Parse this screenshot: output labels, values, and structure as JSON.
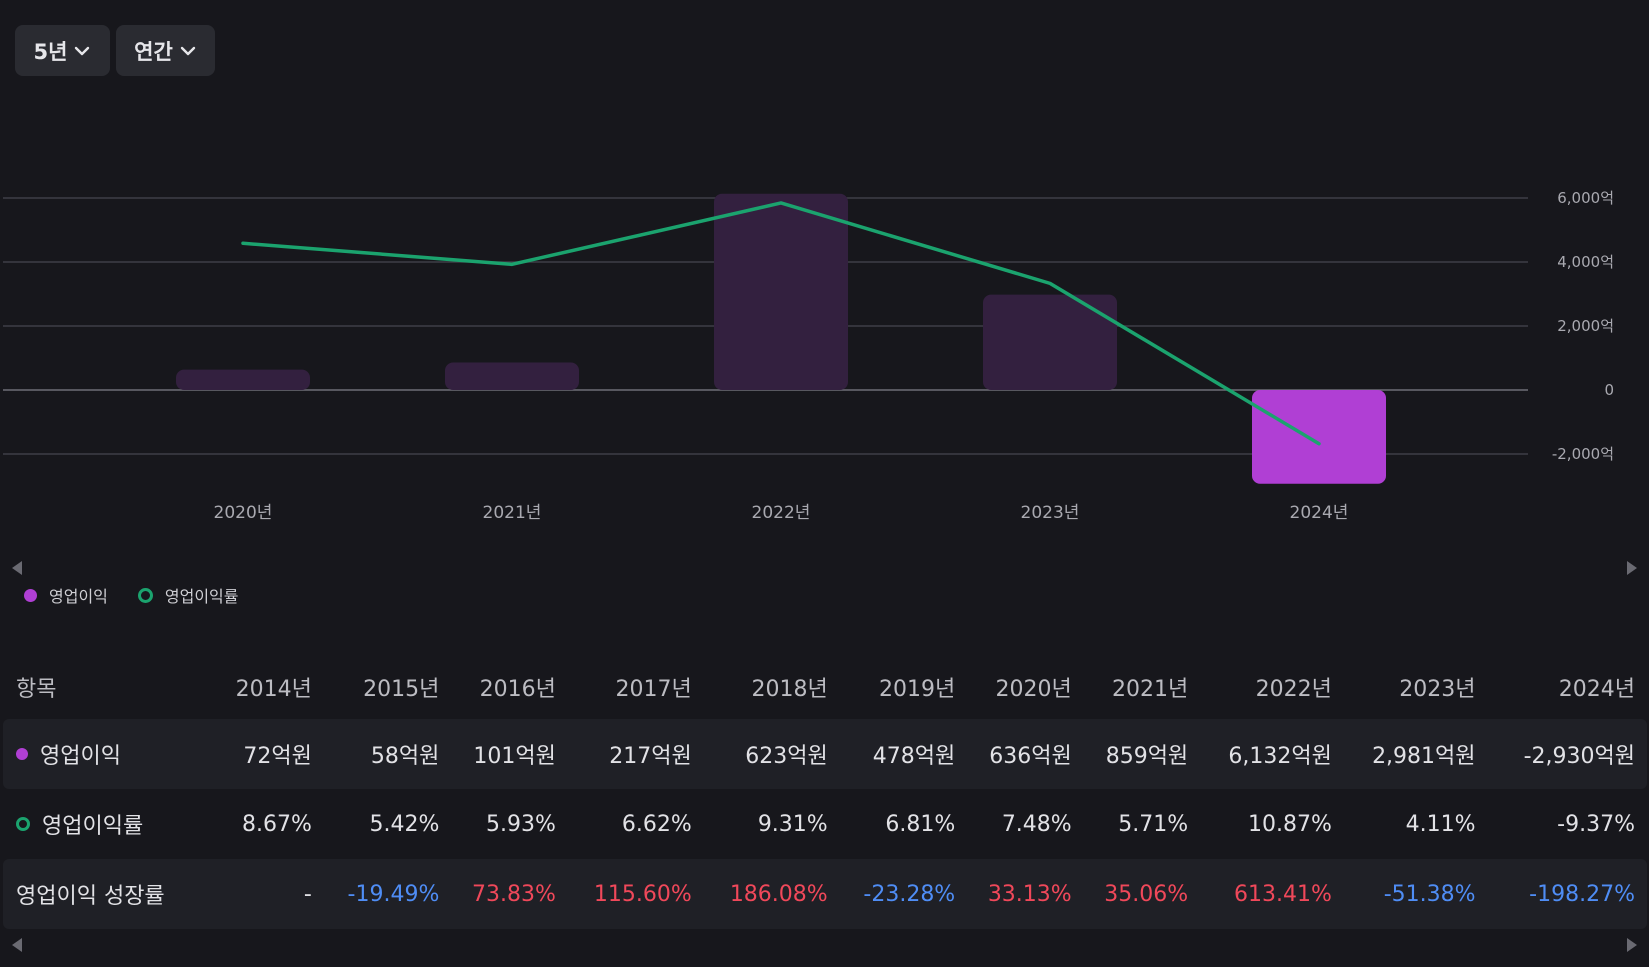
{
  "controls": {
    "period": "5년",
    "frequency": "연간"
  },
  "colors": {
    "bar_default": "#33203f",
    "bar_highlight": "#b03fd4",
    "line": "#1ba36e",
    "negative": "#4f8df5",
    "positive": "#f0485a"
  },
  "chart_data": {
    "type": "bar",
    "categories": [
      "2020년",
      "2021년",
      "2022년",
      "2023년",
      "2024년"
    ],
    "series": [
      {
        "name": "영업이익",
        "type": "bar",
        "unit": "억",
        "values": [
          636,
          859,
          6132,
          2981,
          -2930
        ]
      },
      {
        "name": "영업이익률",
        "type": "line",
        "unit": "%",
        "values": [
          7.48,
          5.71,
          10.87,
          4.11,
          -9.37
        ]
      }
    ],
    "yaxis": {
      "ticks": [
        6000,
        4000,
        2000,
        0,
        -2000
      ],
      "tick_labels": [
        "6,000억",
        "4,000억",
        "2,000억",
        "0",
        "-2,000억"
      ],
      "ylim": [
        -3000,
        6000
      ],
      "position": "right"
    },
    "line_axis": {
      "ylim": [
        -12,
        12.8
      ]
    },
    "highlighted_category": "2024년",
    "legend": [
      "영업이익",
      "영업이익률"
    ],
    "legend_position": "bottom-left"
  },
  "table": {
    "header": [
      "항목",
      "2014년",
      "2015년",
      "2016년",
      "2017년",
      "2018년",
      "2019년",
      "2020년",
      "2021년",
      "2022년",
      "2023년",
      "2024년"
    ],
    "rows": [
      {
        "label": "영업이익",
        "marker": "filled",
        "values": [
          "72억원",
          "58억원",
          "101억원",
          "217억원",
          "623억원",
          "478억원",
          "636억원",
          "859억원",
          "6,132억원",
          "2,981억원",
          "-2,930억원"
        ]
      },
      {
        "label": "영업이익률",
        "marker": "ring",
        "values": [
          "8.67%",
          "5.42%",
          "5.93%",
          "6.62%",
          "9.31%",
          "6.81%",
          "7.48%",
          "5.71%",
          "10.87%",
          "4.11%",
          "-9.37%"
        ]
      },
      {
        "label": "영업이익 성장률",
        "marker": "none",
        "values": [
          "-",
          "-19.49%",
          "73.83%",
          "115.60%",
          "186.08%",
          "-23.28%",
          "33.13%",
          "35.06%",
          "613.41%",
          "-51.38%",
          "-198.27%"
        ]
      }
    ]
  }
}
